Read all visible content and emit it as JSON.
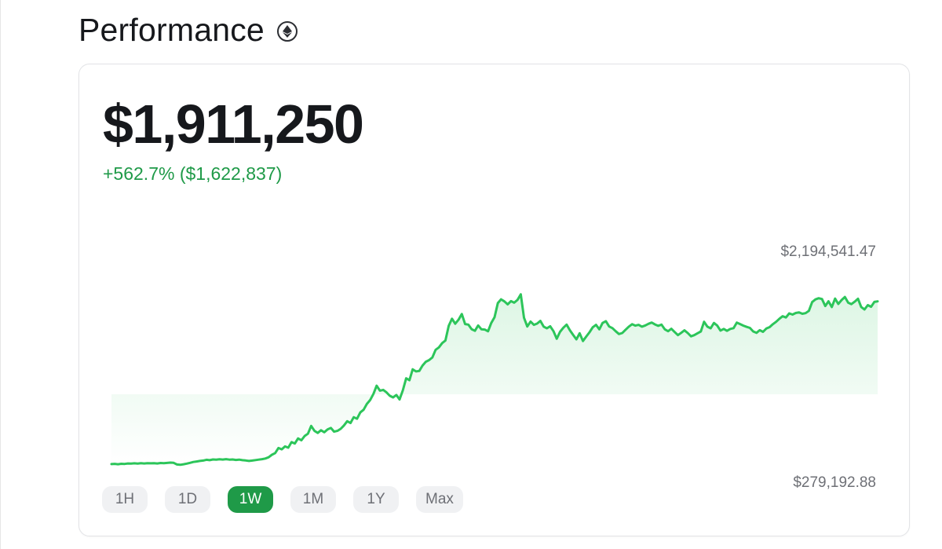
{
  "page": {
    "title": "Performance",
    "title_icon": "ethereum-icon"
  },
  "summary": {
    "value": "$1,911,250",
    "change": "+562.7% ($1,622,837)"
  },
  "colors": {
    "positive": "#1f9a48",
    "line": "#2cc55a",
    "text": "#16181c",
    "muted": "#6e7076",
    "button_bg": "#f0f1f3"
  },
  "ranges": [
    "1H",
    "1D",
    "1W",
    "1M",
    "1Y",
    "Max"
  ],
  "active_range": "1W",
  "chart_data": {
    "type": "area",
    "title": "",
    "xlabel": "",
    "ylabel": "",
    "y_max_label": "$2,194,541.47",
    "y_min_label": "$279,192.88",
    "ylim": [
      279192.88,
      2194541.47
    ],
    "grid": false,
    "legend": "none",
    "series": [
      {
        "values": [
          288000,
          290000,
          286000,
          291000,
          289000,
          294000,
          292000,
          295000,
          293000,
          296000,
          294000,
          297000,
          295000,
          296000,
          294000,
          298000,
          296000,
          299000,
          302000,
          300000,
          284000,
          281000,
          286000,
          292000,
          300000,
          308000,
          313000,
          318000,
          322000,
          330000,
          326000,
          333000,
          331000,
          334000,
          332000,
          336000,
          331000,
          333000,
          328000,
          331000,
          326000,
          323000,
          318000,
          322000,
          327000,
          331000,
          336000,
          342000,
          354000,
          379000,
          395000,
          445000,
          432000,
          460000,
          448000,
          502000,
          488000,
          538000,
          520000,
          562000,
          584000,
          660000,
          612000,
          592000,
          618000,
          598000,
          626000,
          640000,
          604000,
          612000,
          632000,
          664000,
          706000,
          688000,
          745000,
          730000,
          792000,
          818000,
          874000,
          912000,
          972000,
          1052000,
          1004000,
          1012000,
          987000,
          954000,
          938000,
          962000,
          918000,
          1008000,
          1124000,
          1106000,
          1212000,
          1192000,
          1196000,
          1248000,
          1286000,
          1302000,
          1328000,
          1402000,
          1426000,
          1468000,
          1493000,
          1636000,
          1706000,
          1657000,
          1696000,
          1752000,
          1654000,
          1648000,
          1604000,
          1588000,
          1640000,
          1602000,
          1600000,
          1583000,
          1664000,
          1720000,
          1858000,
          1895000,
          1875000,
          1846000,
          1877000,
          1862000,
          1889000,
          1944000,
          1716000,
          1630000,
          1678000,
          1646000,
          1658000,
          1684000,
          1628000,
          1612000,
          1632000,
          1584000,
          1510000,
          1578000,
          1618000,
          1648000,
          1594000,
          1548000,
          1504000,
          1564000,
          1488000,
          1532000,
          1574000,
          1622000,
          1646000,
          1602000,
          1664000,
          1682000,
          1630000,
          1614000,
          1584000,
          1556000,
          1566000,
          1598000,
          1628000,
          1652000,
          1638000,
          1646000,
          1628000,
          1640000,
          1656000,
          1668000,
          1650000,
          1636000,
          1648000,
          1602000,
          1584000,
          1608000,
          1576000,
          1546000,
          1568000,
          1592000,
          1566000,
          1534000,
          1546000,
          1564000,
          1582000,
          1676000,
          1628000,
          1612000,
          1664000,
          1640000,
          1590000,
          1606000,
          1588000,
          1606000,
          1614000,
          1668000,
          1654000,
          1638000,
          1626000,
          1616000,
          1582000,
          1568000,
          1594000,
          1578000,
          1610000,
          1624000,
          1652000,
          1676000,
          1706000,
          1730000,
          1718000,
          1758000,
          1746000,
          1762000,
          1768000,
          1754000,
          1760000,
          1782000,
          1868000,
          1894000,
          1906000,
          1898000,
          1830000,
          1876000,
          1820000,
          1902000,
          1850000,
          1888000,
          1918000,
          1862000,
          1848000,
          1872000,
          1900000,
          1820000,
          1796000,
          1838000,
          1822000,
          1870000,
          1875000
        ]
      }
    ]
  }
}
